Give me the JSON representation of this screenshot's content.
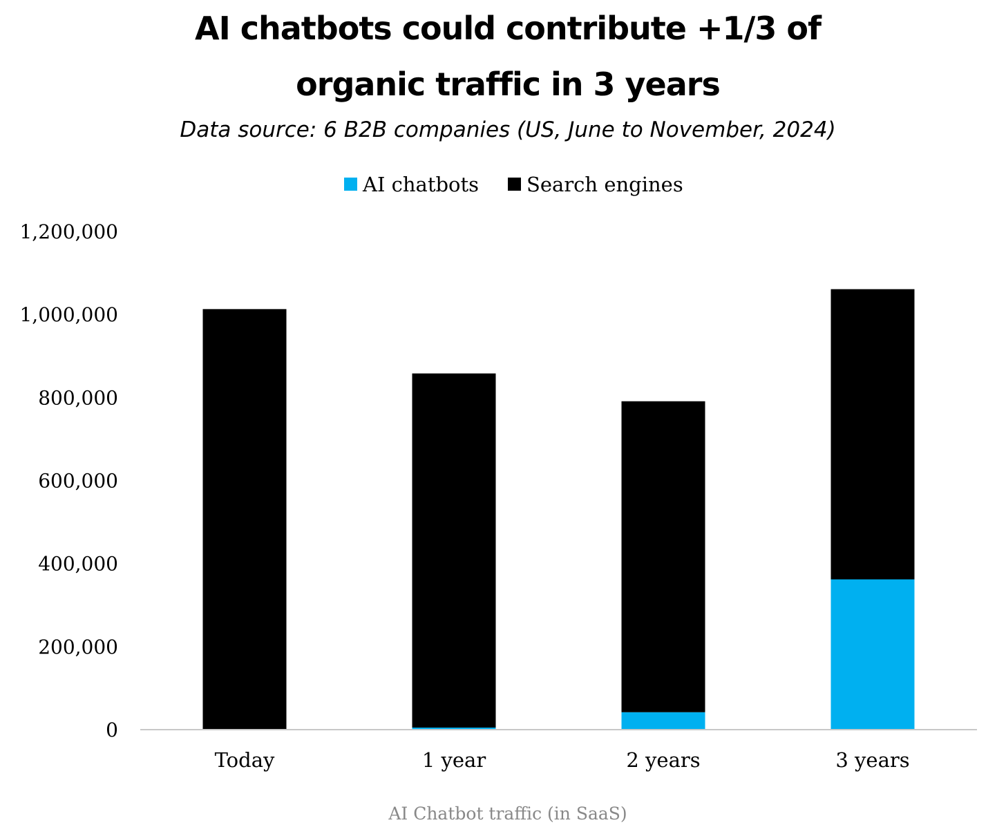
{
  "chart_data": {
    "type": "bar",
    "stacked": true,
    "title_lines": [
      "AI chatbots could contribute +1/3 of",
      "organic traffic in 3 years"
    ],
    "subtitle": "Data source: 6 B2B companies (US, June to November, 2024)",
    "caption": "AI Chatbot traffic (in SaaS)",
    "categories": [
      "Today",
      "1 year",
      "2 years",
      "3 years"
    ],
    "series": [
      {
        "name": "AI chatbots",
        "color": "#00b0f0",
        "values": [
          0,
          5000,
          42000,
          362000
        ]
      },
      {
        "name": "Search engines",
        "color": "#000000",
        "values": [
          1013000,
          853000,
          749000,
          699000
        ]
      }
    ],
    "y_ticks": [
      0,
      200000,
      400000,
      600000,
      800000,
      1000000,
      1200000
    ],
    "y_tick_labels": [
      "0",
      "200,000",
      "400,000",
      "600,000",
      "800,000",
      "1,000,000",
      "1,200,000"
    ],
    "ylim": [
      0,
      1200000
    ],
    "grid": false,
    "legend_position": "top-center",
    "xlabel": "",
    "ylabel": ""
  }
}
